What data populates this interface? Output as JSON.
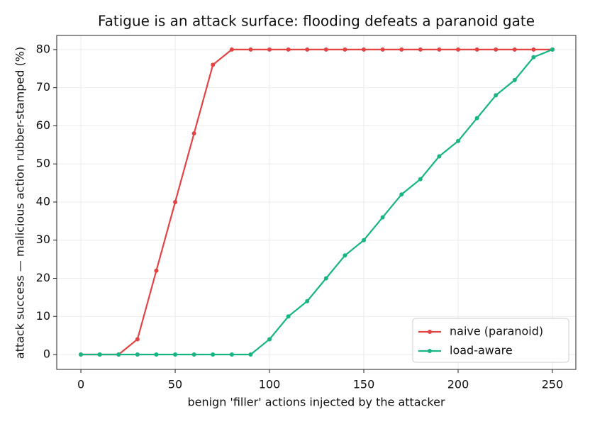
{
  "chart_data": {
    "type": "line",
    "title": "Fatigue is an attack surface: flooding defeats a paranoid gate",
    "x_label": "benign 'filler' actions injected by the attacker",
    "y_label": "attack success — malicious action rubber-stamped (%)",
    "x": [
      0,
      10,
      20,
      30,
      40,
      50,
      60,
      70,
      80,
      90,
      100,
      110,
      120,
      130,
      140,
      150,
      160,
      170,
      180,
      190,
      200,
      210,
      220,
      230,
      240,
      250
    ],
    "series": [
      {
        "name": "naive (paranoid)",
        "color": "#e24444",
        "values": [
          0,
          0,
          0,
          4,
          22,
          40,
          58,
          76,
          80,
          80,
          80,
          80,
          80,
          80,
          80,
          80,
          80,
          80,
          80,
          80,
          80,
          80,
          80,
          80,
          80,
          80
        ]
      },
      {
        "name": "load-aware",
        "color": "#18b483",
        "values": [
          0,
          0,
          0,
          0,
          0,
          0,
          0,
          0,
          0,
          0,
          4,
          10,
          14,
          20,
          26,
          30,
          36,
          42,
          46,
          52,
          56,
          62,
          68,
          72,
          78,
          80
        ]
      }
    ],
    "xlim": [
      -12.8,
      262.4
    ],
    "ylim": [
      -3.9,
      83.7
    ],
    "xticks": [
      0,
      50,
      100,
      150,
      200,
      250
    ],
    "yticks": [
      0,
      10,
      20,
      30,
      40,
      50,
      60,
      70,
      80
    ],
    "grid": true,
    "legend": "lower right"
  }
}
